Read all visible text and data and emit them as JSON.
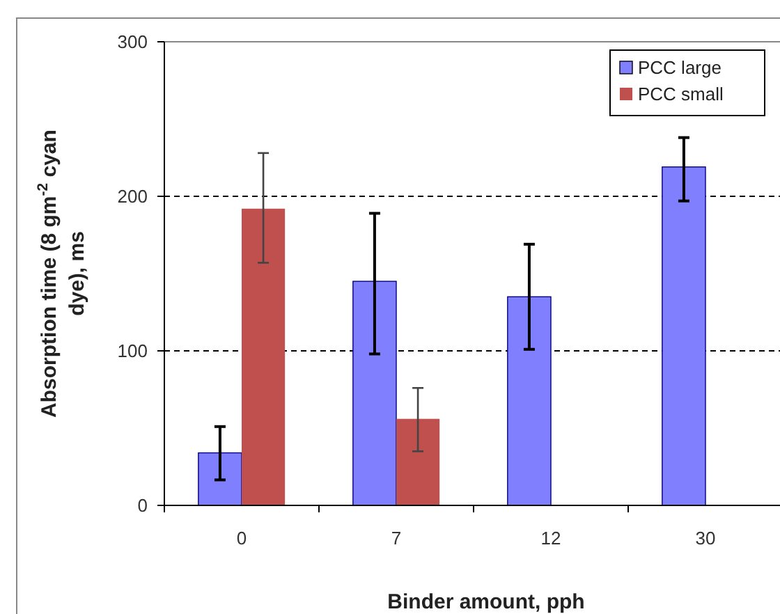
{
  "chart_data": {
    "type": "bar",
    "xlabel": "Binder amount, pph",
    "ylabel": "Absorption time (8 gm$^{-2}$ cyan dye), ms",
    "categories": [
      "0",
      "7",
      "12",
      "30"
    ],
    "series": [
      {
        "name": "PCC large",
        "color": "#8080ff",
        "values": [
          34,
          145,
          135,
          219
        ],
        "errors": [
          [
            16.5,
            51
          ],
          [
            98,
            189
          ],
          [
            101,
            169
          ],
          [
            197,
            238
          ]
        ]
      },
      {
        "name": "PCC small",
        "color": "#c0504d",
        "values": [
          192,
          56,
          null,
          null
        ],
        "errors": [
          [
            157,
            228
          ],
          [
            35,
            76
          ],
          null,
          null
        ]
      }
    ],
    "ylim": [
      0,
      300
    ],
    "yticks": [
      0,
      100,
      200,
      300
    ],
    "grid": "y",
    "legend": "top right"
  }
}
